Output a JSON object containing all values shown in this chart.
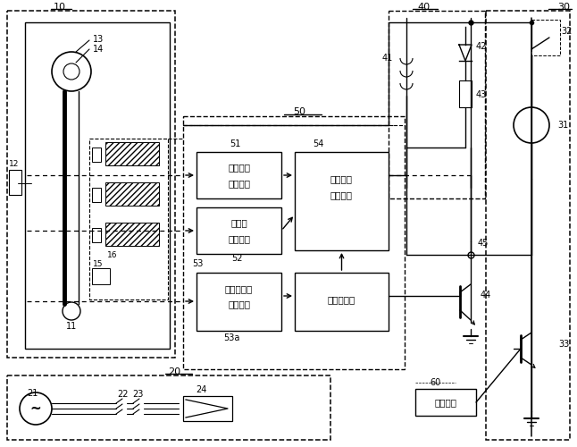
{
  "bg_color": "#ffffff",
  "labels": {
    "box10": "10",
    "box20": "20",
    "box30": "30",
    "box40": "40",
    "box50": "50",
    "n11": "11",
    "n12": "12",
    "n13": "13",
    "n14": "14",
    "n15": "15",
    "n16": "16",
    "n21": "21",
    "n22": "22",
    "n23": "23",
    "n24": "24",
    "n31": "31",
    "n32": "32",
    "n33": "33",
    "n41": "41",
    "n42": "42",
    "n43": "43",
    "n44": "44",
    "n45": "45",
    "n51": "51",
    "n52": "52",
    "n53": "53",
    "n53a": "53a",
    "n54": "54",
    "n60": "60",
    "box51_l1": "接点信号",
    "box51_l2": "检测单元",
    "box52_l1": "门敞开",
    "box52_l2": "检测单元",
    "box53_l1": "制动力控制",
    "box53_l2": "处理单元",
    "box54_l1": "制动电源",
    "box54_l2": "切断单元",
    "box55_l1": "故障检测部",
    "ctrl_l1": "控制单元"
  }
}
